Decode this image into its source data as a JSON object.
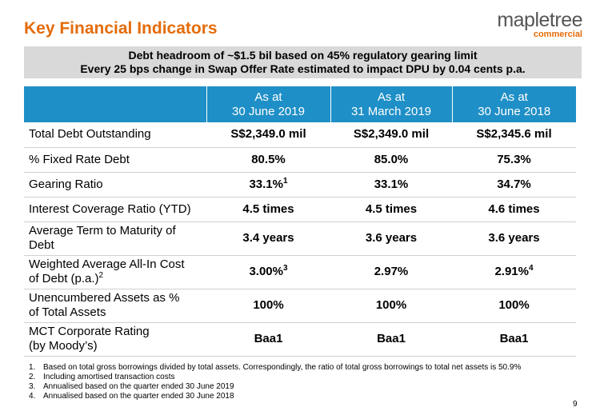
{
  "header": {
    "title": "Key Financial Indicators",
    "logo": {
      "name": "mapletree",
      "sub": "commercial"
    }
  },
  "banner": [
    "Debt headroom of ~$1.5 bil based on 45% regulatory gearing limit",
    "Every 25 bps change in Swap Offer Rate estimated to impact DPU by 0.04 cents p.a."
  ],
  "table": {
    "columns": [
      [
        "As at",
        "30 June 2019"
      ],
      [
        "As at",
        "31 March 2019"
      ],
      [
        "As at",
        "30 June 2018"
      ]
    ],
    "rows": [
      {
        "label": [
          "Total Debt Outstanding"
        ],
        "cells": [
          {
            "text": "S$2,349.0 mil"
          },
          {
            "text": "S$2,349.0 mil"
          },
          {
            "text": "S$2,345.6 mil"
          }
        ]
      },
      {
        "label": [
          "% Fixed Rate Debt"
        ],
        "cells": [
          {
            "text": "80.5%"
          },
          {
            "text": "85.0%"
          },
          {
            "text": "75.3%"
          }
        ]
      },
      {
        "label": [
          "Gearing Ratio"
        ],
        "cells": [
          {
            "text": "33.1%",
            "sup": "1"
          },
          {
            "text": "33.1%"
          },
          {
            "text": "34.7%"
          }
        ]
      },
      {
        "label": [
          "Interest Coverage Ratio (YTD)"
        ],
        "cells": [
          {
            "text": "4.5 times"
          },
          {
            "text": "4.5 times"
          },
          {
            "text": "4.6 times"
          }
        ]
      },
      {
        "label": [
          "Average Term to Maturity of",
          "Debt"
        ],
        "cells": [
          {
            "text": "3.4 years"
          },
          {
            "text": "3.6 years"
          },
          {
            "text": "3.6 years"
          }
        ]
      },
      {
        "label": [
          "Weighted Average All-In Cost",
          "of Debt (p.a.)"
        ],
        "label_sup": "2",
        "cells": [
          {
            "text": "3.00%",
            "sup": "3"
          },
          {
            "text": "2.97%"
          },
          {
            "text": "2.91%",
            "sup": "4"
          }
        ]
      },
      {
        "label": [
          "Unencumbered Assets as %",
          "of Total Assets"
        ],
        "cells": [
          {
            "text": "100%"
          },
          {
            "text": "100%"
          },
          {
            "text": "100%"
          }
        ]
      },
      {
        "label": [
          "MCT Corporate Rating",
          "(by Moody’s)"
        ],
        "cells": [
          {
            "text": "Baa1"
          },
          {
            "text": "Baa1"
          },
          {
            "text": "Baa1"
          }
        ]
      }
    ]
  },
  "footnotes": [
    {
      "marker": "1.",
      "text": "Based on total gross borrowings divided by total assets. Correspondingly, the ratio of total gross borrowings to total net assets is 50.9%"
    },
    {
      "marker": "2.",
      "text": "Including amortised transaction costs"
    },
    {
      "marker": "3.",
      "text": "Annualised based on the quarter ended 30 June 2019"
    },
    {
      "marker": "4.",
      "text": "Annualised based on the quarter ended 30 June 2018"
    }
  ],
  "page_number": "9"
}
